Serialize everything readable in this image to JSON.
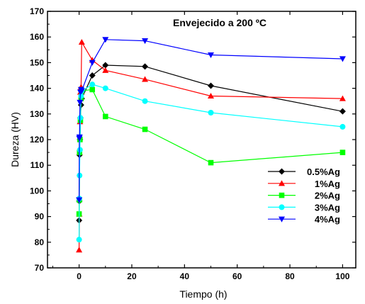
{
  "chart_data": {
    "type": "line",
    "title": "Envejecido a 200 ºC",
    "xlabel": "Tiempo (h)",
    "ylabel": "Dureza (HV)",
    "xlim": [
      -12,
      105
    ],
    "ylim": [
      70,
      170
    ],
    "xticks": [
      0,
      20,
      40,
      60,
      80,
      100
    ],
    "yticks": [
      70,
      80,
      90,
      100,
      110,
      120,
      130,
      140,
      150,
      160,
      170
    ],
    "grid": false,
    "legend_position": "lower-right",
    "series": [
      {
        "name": "0.5%Ag",
        "color": "#000000",
        "marker": "diamond",
        "x": [
          0,
          0.08,
          0.17,
          0.33,
          0.5,
          0.75,
          1,
          5,
          10,
          25,
          50,
          100
        ],
        "y": [
          88.5,
          96,
          114,
          120,
          128.5,
          133.5,
          136,
          145,
          149,
          148.5,
          141,
          131
        ]
      },
      {
        "name": "1%Ag",
        "color": "#ff0000",
        "marker": "triangle-up",
        "x": [
          0,
          0.08,
          0.17,
          0.33,
          0.5,
          0.75,
          1,
          5,
          10,
          25,
          50,
          100
        ],
        "y": [
          77,
          91,
          115,
          127,
          138.5,
          140.5,
          158,
          151,
          147,
          143.5,
          137,
          136
        ]
      },
      {
        "name": "2%Ag",
        "color": "#00ff00",
        "marker": "square",
        "x": [
          0,
          0.08,
          0.17,
          0.33,
          0.5,
          0.75,
          1,
          5,
          10,
          25,
          50,
          100
        ],
        "y": [
          91,
          96.5,
          115,
          120,
          127.5,
          136,
          139,
          139.5,
          129,
          124,
          111,
          115
        ]
      },
      {
        "name": "3%Ag",
        "color": "#00ffff",
        "marker": "circle",
        "x": [
          0,
          0.08,
          0.17,
          0.33,
          0.5,
          0.75,
          1,
          5,
          10,
          25,
          50,
          100
        ],
        "y": [
          81,
          97,
          106,
          116,
          128.5,
          137,
          139,
          141.5,
          140,
          135,
          130.5,
          125
        ]
      },
      {
        "name": "4%Ag",
        "color": "#0000ff",
        "marker": "triangle-down",
        "x": [
          0,
          0.08,
          0.17,
          0.33,
          0.5,
          0.75,
          1,
          5,
          10,
          25,
          50,
          100
        ],
        "y": [
          96.5,
          120.5,
          121,
          134.5,
          138.5,
          139.5,
          139,
          150,
          159,
          158.5,
          153,
          151.5
        ]
      }
    ]
  }
}
